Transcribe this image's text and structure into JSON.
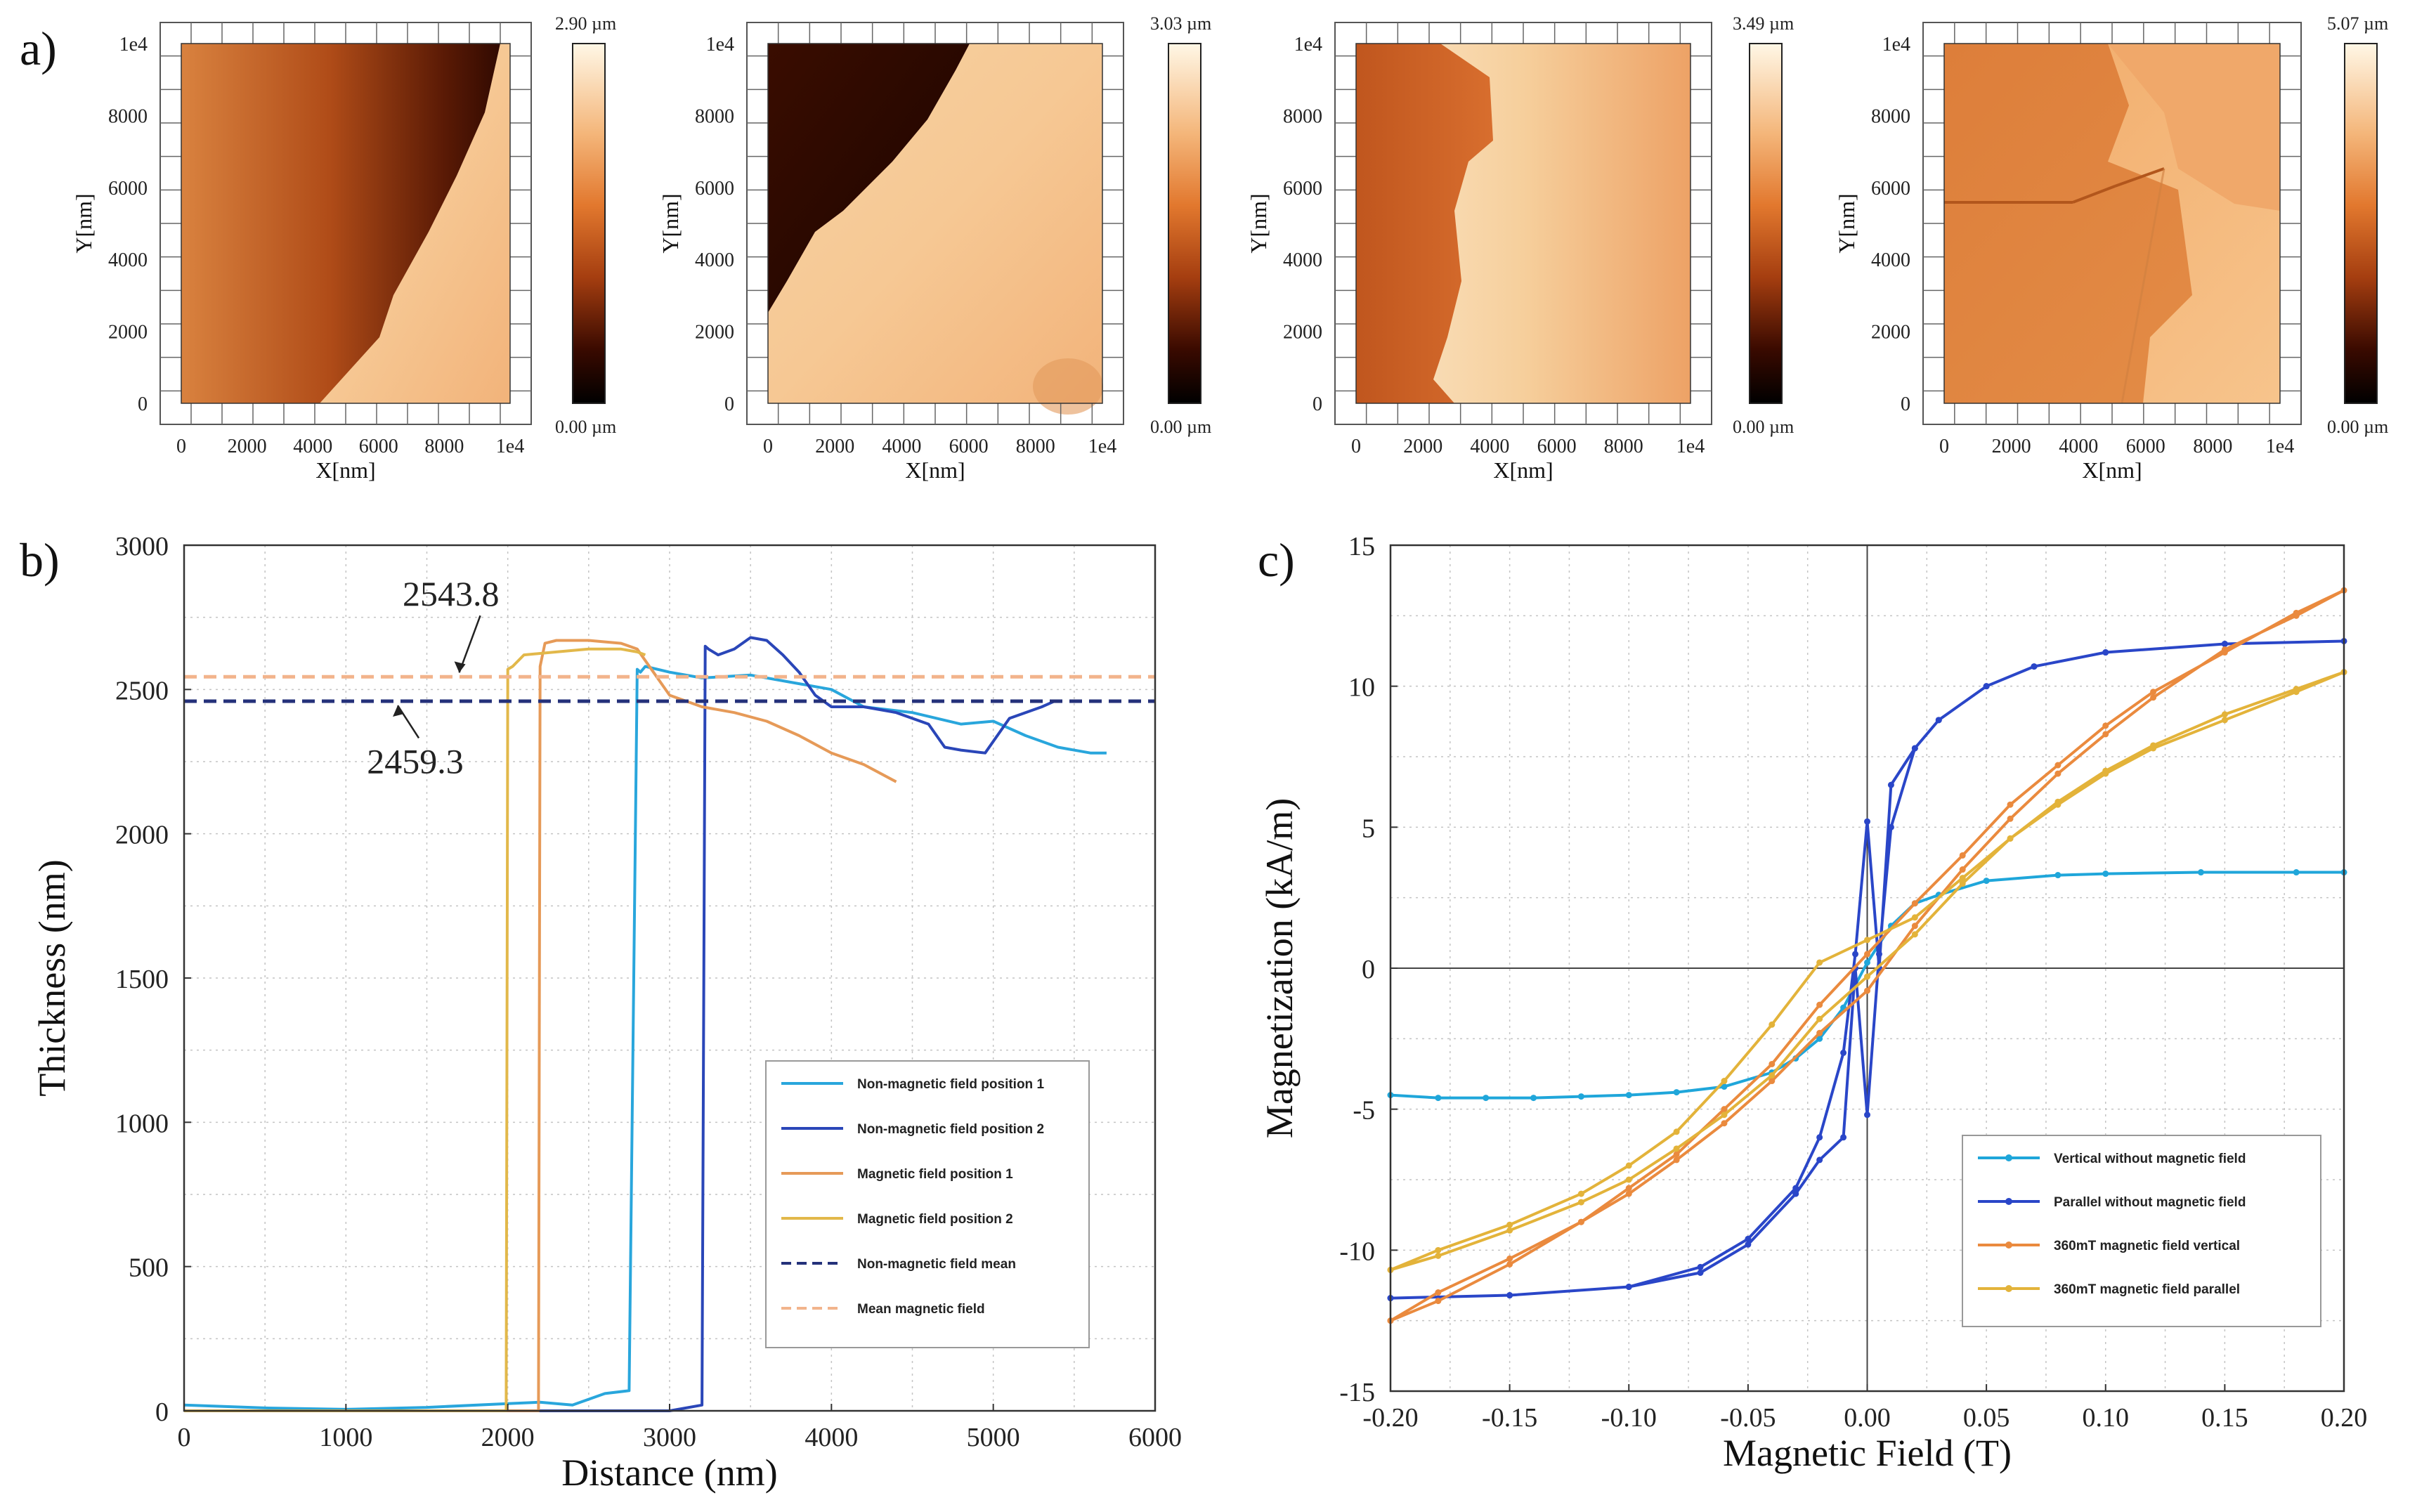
{
  "figure_labels": {
    "a": "a)",
    "b": "b)",
    "c": "c)"
  },
  "afm_maps": [
    {
      "name": "afm-map-1",
      "colorbar_max": "2.90 µm",
      "colorbar_min": "0.00 µm",
      "xlabel": "X[nm]",
      "ylabel": "Y[nm]",
      "x_ticks": [
        "0",
        "2000",
        "4000",
        "6000",
        "8000",
        "1e4"
      ],
      "y_ticks": [
        "0",
        "2000",
        "4000",
        "6000",
        "8000",
        "1e4"
      ]
    },
    {
      "name": "afm-map-2",
      "colorbar_max": "3.03 µm",
      "colorbar_min": "0.00 µm",
      "xlabel": "X[nm]",
      "ylabel": "Y[nm]",
      "x_ticks": [
        "0",
        "2000",
        "4000",
        "6000",
        "8000",
        "1e4"
      ],
      "y_ticks": [
        "0",
        "2000",
        "4000",
        "6000",
        "8000",
        "1e4"
      ]
    },
    {
      "name": "afm-map-3",
      "colorbar_max": "3.49 µm",
      "colorbar_min": "0.00 µm",
      "xlabel": "X[nm]",
      "ylabel": "Y[nm]",
      "x_ticks": [
        "0",
        "2000",
        "4000",
        "6000",
        "8000",
        "1e4"
      ],
      "y_ticks": [
        "0",
        "2000",
        "4000",
        "6000",
        "8000",
        "1e4"
      ]
    },
    {
      "name": "afm-map-4",
      "colorbar_max": "5.07 µm",
      "colorbar_min": "0.00 µm",
      "xlabel": "X[nm]",
      "ylabel": "Y[nm]",
      "x_ticks": [
        "0",
        "2000",
        "4000",
        "6000",
        "8000",
        "1e4"
      ],
      "y_ticks": [
        "0",
        "2000",
        "4000",
        "6000",
        "8000",
        "1e4"
      ]
    }
  ],
  "chart_data": [
    {
      "type": "line",
      "title": "",
      "xlabel": "Distance  (nm)",
      "ylabel": "Thickness  (nm)",
      "xlim": [
        0,
        6000
      ],
      "ylim": [
        0,
        3000
      ],
      "x_ticks": [
        "0",
        "1000",
        "2000",
        "3000",
        "4000",
        "5000",
        "6000"
      ],
      "y_ticks": [
        "0",
        "500",
        "1000",
        "1500",
        "2000",
        "2500",
        "3000"
      ],
      "grid": true,
      "legend_position": "bottom-right",
      "annotations": [
        {
          "text": "2543.8",
          "x": 1700,
          "y": 2543.8,
          "text_x": 1350,
          "text_y": 2790
        },
        {
          "text": "2459.3",
          "x": 1320,
          "y": 2459.3,
          "text_x": 1130,
          "text_y": 2210
        }
      ],
      "series": [
        {
          "name": "Non-magnetic field position 1",
          "color": "#29a6dc",
          "dash": false,
          "x": [
            0,
            500,
            1000,
            1500,
            2000,
            2200,
            2400,
            2600,
            2750,
            2800,
            2820,
            2850,
            3000,
            3200,
            3500,
            3800,
            4000,
            4200,
            4500,
            4800,
            5000,
            5200,
            5400,
            5600,
            5700
          ],
          "y": [
            20,
            10,
            5,
            12,
            25,
            30,
            20,
            60,
            70,
            2570,
            2560,
            2580,
            2560,
            2540,
            2550,
            2520,
            2500,
            2440,
            2420,
            2380,
            2390,
            2340,
            2300,
            2280,
            2280
          ]
        },
        {
          "name": "Non-magnetic field position 2",
          "color": "#2a46b8",
          "dash": false,
          "x": [
            0,
            500,
            1000,
            1500,
            2000,
            2500,
            3000,
            3200,
            3220,
            3240,
            3300,
            3400,
            3500,
            3600,
            3700,
            3800,
            3900,
            4000,
            4200,
            4400,
            4600,
            4700,
            4800,
            4950,
            5100,
            5300,
            5380
          ],
          "y": [
            0,
            0,
            0,
            0,
            0,
            0,
            0,
            20,
            2650,
            2640,
            2620,
            2640,
            2680,
            2670,
            2620,
            2560,
            2480,
            2440,
            2440,
            2420,
            2380,
            2300,
            2290,
            2280,
            2400,
            2440,
            2460
          ]
        },
        {
          "name": "Magnetic field position 1",
          "color": "#e69a58",
          "dash": false,
          "x": [
            0,
            1000,
            2000,
            2190,
            2200,
            2230,
            2300,
            2500,
            2700,
            2800,
            2900,
            3000,
            3200,
            3400,
            3600,
            3800,
            4000,
            4200,
            4400
          ],
          "y": [
            0,
            0,
            0,
            0,
            2580,
            2660,
            2670,
            2670,
            2660,
            2640,
            2560,
            2480,
            2440,
            2420,
            2390,
            2340,
            2280,
            2240,
            2180
          ]
        },
        {
          "name": "Magnetic field position 2",
          "color": "#e2b84a",
          "dash": false,
          "x": [
            0,
            1000,
            1990,
            2000,
            2030,
            2100,
            2300,
            2500,
            2700,
            2800,
            2850
          ],
          "y": [
            0,
            0,
            0,
            2570,
            2580,
            2620,
            2630,
            2640,
            2640,
            2630,
            2620
          ]
        },
        {
          "name": "Non-magnetic field mean",
          "color": "#24317a",
          "dash": true,
          "x": [
            0,
            6000
          ],
          "y": [
            2459.3,
            2459.3
          ]
        },
        {
          "name": "Mean magnetic field",
          "color": "#f2b48c",
          "dash": true,
          "x": [
            0,
            6000
          ],
          "y": [
            2543.8,
            2543.8
          ]
        }
      ]
    },
    {
      "type": "line",
      "title": "",
      "xlabel": "Magnetic Field  (T)",
      "ylabel": "Magnetization  (kA/m)",
      "xlim": [
        -0.2,
        0.2
      ],
      "ylim": [
        -15,
        15
      ],
      "x_ticks": [
        "-0.20",
        "-0.15",
        "-0.10",
        "-0.05",
        "0.00",
        "0.05",
        "0.10",
        "0.15",
        "0.20"
      ],
      "y_ticks": [
        "-15",
        "-10",
        "-5",
        "0",
        "5",
        "10",
        "15"
      ],
      "grid": true,
      "legend_position": "bottom-right",
      "series": [
        {
          "name": "Vertical without magnetic field",
          "color": "#1fa6da",
          "dash": false,
          "x": [
            -0.2,
            -0.18,
            -0.16,
            -0.14,
            -0.12,
            -0.1,
            -0.08,
            -0.06,
            -0.04,
            -0.03,
            -0.02,
            -0.01,
            0,
            0.01,
            0.02,
            0.03,
            0.05,
            0.08,
            0.1,
            0.14,
            0.18,
            0.2
          ],
          "y": [
            -4.5,
            -4.6,
            -4.6,
            -4.6,
            -4.55,
            -4.5,
            -4.4,
            -4.2,
            -3.7,
            -3.2,
            -2.5,
            -1.4,
            0.2,
            1.5,
            2.3,
            2.6,
            3.1,
            3.3,
            3.35,
            3.4,
            3.4,
            3.4
          ]
        },
        {
          "name": "Parallel without magnetic field",
          "color": "#2a46c8",
          "dash": false,
          "x": [
            -0.2,
            -0.15,
            -0.1,
            -0.07,
            -0.05,
            -0.03,
            -0.02,
            -0.01,
            -0.005,
            0,
            0.005,
            0.01,
            0.02,
            0.03,
            0.05,
            0.07,
            0.1,
            0.15,
            0.2,
            0.15,
            0.1,
            0.07,
            0.05,
            0.03,
            0.02,
            0.01,
            0.005,
            0,
            -0.005,
            -0.01,
            -0.02,
            -0.03,
            -0.05,
            -0.07,
            -0.1,
            -0.15,
            -0.2
          ],
          "y": [
            -11.7,
            -11.6,
            -11.3,
            -10.8,
            -9.8,
            -8.0,
            -6.8,
            -6.0,
            0,
            -5.2,
            0.5,
            5.0,
            7.8,
            8.8,
            10.0,
            10.7,
            11.2,
            11.5,
            11.6,
            11.5,
            11.2,
            10.7,
            10.0,
            8.8,
            7.8,
            6.5,
            0,
            5.2,
            0.5,
            -3.0,
            -6.0,
            -7.8,
            -9.6,
            -10.6,
            -11.3,
            -11.6,
            -11.7
          ]
        },
        {
          "name": "360mT magnetic field vertical",
          "color": "#ea8a3e",
          "dash": false,
          "x": [
            -0.2,
            -0.18,
            -0.15,
            -0.12,
            -0.1,
            -0.08,
            -0.06,
            -0.04,
            -0.02,
            0,
            0.02,
            0.04,
            0.06,
            0.08,
            0.1,
            0.12,
            0.15,
            0.18,
            0.2,
            0.18,
            0.15,
            0.12,
            0.1,
            0.08,
            0.06,
            0.04,
            0.02,
            0,
            -0.02,
            -0.04,
            -0.06,
            -0.08,
            -0.1,
            -0.12,
            -0.15,
            -0.18,
            -0.2
          ],
          "y": [
            -12.5,
            -11.8,
            -10.5,
            -9.0,
            -8.0,
            -6.8,
            -5.5,
            -4.0,
            -2.3,
            -0.8,
            1.5,
            3.5,
            5.3,
            6.9,
            8.3,
            9.6,
            11.3,
            12.5,
            13.4,
            12.6,
            11.2,
            9.8,
            8.6,
            7.2,
            5.8,
            4.0,
            2.3,
            0.5,
            -1.3,
            -3.4,
            -5.0,
            -6.6,
            -7.8,
            -9.0,
            -10.3,
            -11.5,
            -12.5
          ]
        },
        {
          "name": "360mT magnetic field parallel",
          "color": "#e3b33a",
          "dash": false,
          "x": [
            -0.2,
            -0.18,
            -0.15,
            -0.12,
            -0.1,
            -0.08,
            -0.06,
            -0.04,
            -0.02,
            0,
            0.02,
            0.04,
            0.06,
            0.08,
            0.1,
            0.12,
            0.15,
            0.18,
            0.2,
            0.18,
            0.15,
            0.12,
            0.1,
            0.08,
            0.06,
            0.04,
            0.02,
            0,
            -0.02,
            -0.04,
            -0.06,
            -0.08,
            -0.1,
            -0.12,
            -0.15,
            -0.18,
            -0.2
          ],
          "y": [
            -10.7,
            -10.2,
            -9.3,
            -8.3,
            -7.5,
            -6.4,
            -5.2,
            -3.8,
            -1.8,
            -0.3,
            1.2,
            3.0,
            4.6,
            5.9,
            7.0,
            7.9,
            9.0,
            9.9,
            10.5,
            9.8,
            8.8,
            7.8,
            6.9,
            5.8,
            4.6,
            3.2,
            1.8,
            1.0,
            0.2,
            -2.0,
            -4.0,
            -5.8,
            -7.0,
            -8.0,
            -9.1,
            -10.0,
            -10.7
          ]
        }
      ]
    }
  ]
}
